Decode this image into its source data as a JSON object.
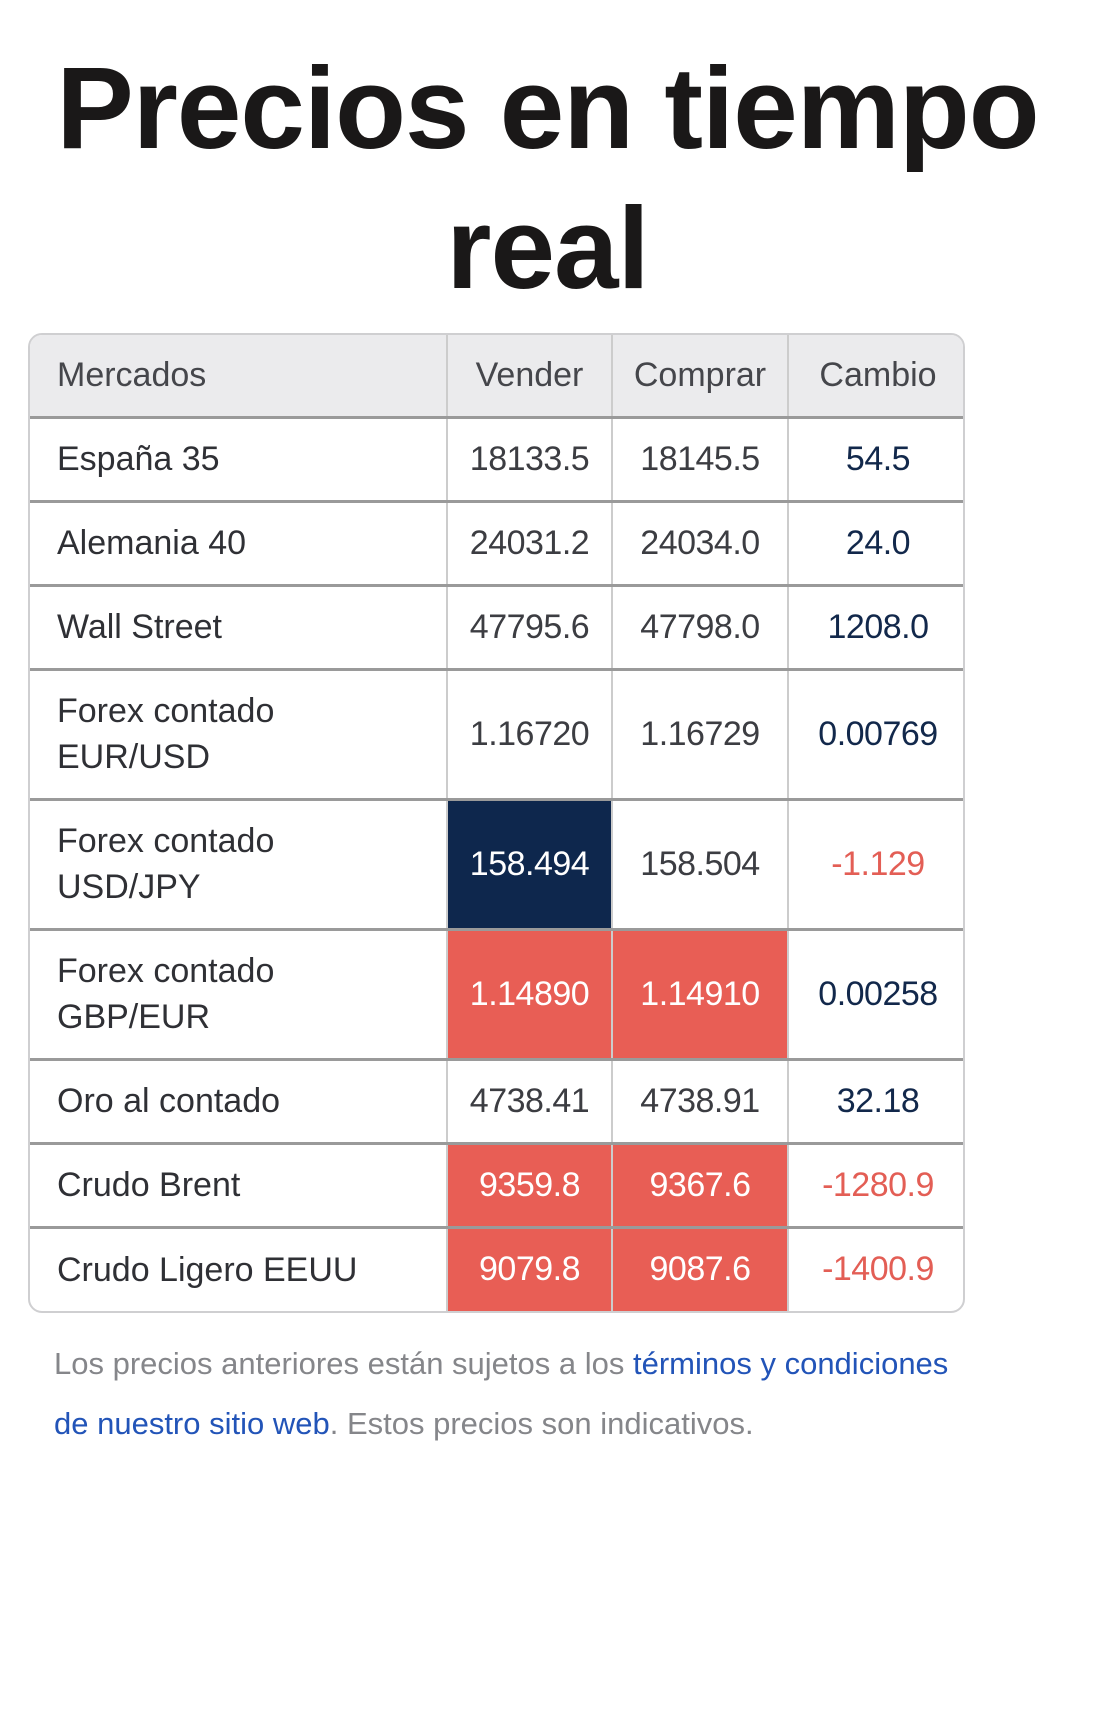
{
  "page": {
    "title": "Precios en tiempo real"
  },
  "table": {
    "headers": {
      "market": "Mercados",
      "sell": "Vender",
      "buy": "Comprar",
      "change": "Cambio"
    },
    "rows": [
      {
        "market": "España 35",
        "sell": "18133.5",
        "buy": "18145.5",
        "change": "54.5",
        "change_dir": "up",
        "sell_flash": "none",
        "buy_flash": "none"
      },
      {
        "market": "Alemania 40",
        "sell": "24031.2",
        "buy": "24034.0",
        "change": "24.0",
        "change_dir": "up",
        "sell_flash": "none",
        "buy_flash": "none"
      },
      {
        "market": "Wall Street",
        "sell": "47795.6",
        "buy": "47798.0",
        "change": "1208.0",
        "change_dir": "up",
        "sell_flash": "none",
        "buy_flash": "none"
      },
      {
        "market": "Forex contado EUR/USD",
        "sell": "1.16720",
        "buy": "1.16729",
        "change": "0.00769",
        "change_dir": "up",
        "sell_flash": "none",
        "buy_flash": "none"
      },
      {
        "market": "Forex contado USD/JPY",
        "sell": "158.494",
        "buy": "158.504",
        "change": "-1.129",
        "change_dir": "down",
        "sell_flash": "blue",
        "buy_flash": "none"
      },
      {
        "market": "Forex contado GBP/EUR",
        "sell": "1.14890",
        "buy": "1.14910",
        "change": "0.00258",
        "change_dir": "up",
        "sell_flash": "red",
        "buy_flash": "red"
      },
      {
        "market": "Oro al contado",
        "sell": "4738.41",
        "buy": "4738.91",
        "change": "32.18",
        "change_dir": "up",
        "sell_flash": "none",
        "buy_flash": "none"
      },
      {
        "market": "Crudo Brent",
        "sell": "9359.8",
        "buy": "9367.6",
        "change": "-1280.9",
        "change_dir": "down",
        "sell_flash": "red",
        "buy_flash": "red"
      },
      {
        "market": "Crudo Ligero EEUU",
        "sell": "9079.8",
        "buy": "9087.6",
        "change": "-1400.9",
        "change_dir": "down",
        "sell_flash": "red",
        "buy_flash": "red"
      }
    ]
  },
  "colors": {
    "positive_change": "#12284b",
    "negative_change": "#e35e55",
    "flash_blue": "#0e274d",
    "flash_red": "#e85e55",
    "header_bg": "#ebebed",
    "link": "#2254b8"
  },
  "disclaimer": {
    "text_before": "Los precios anteriores están sujetos a los ",
    "link_text": "términos y condiciones de nuestro sitio web",
    "text_after": ". Estos precios son indicativos."
  }
}
